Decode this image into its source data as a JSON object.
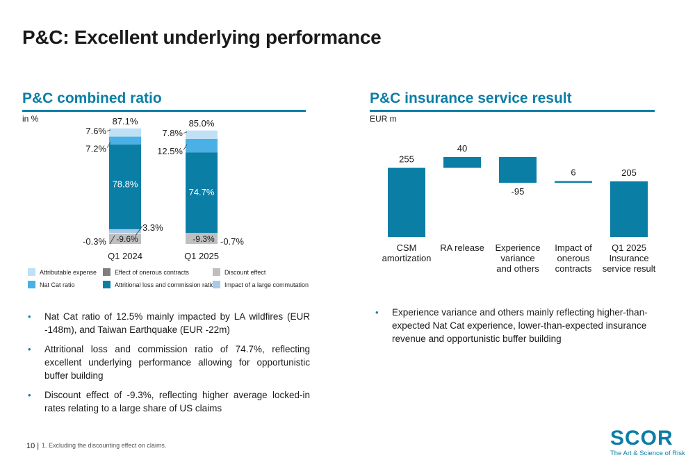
{
  "page": {
    "title": "P&C: Excellent underlying performance",
    "page_number": "10 |",
    "footnote": "1. Excluding the discounting effect on claims."
  },
  "left": {
    "section_title": "P&C combined ratio",
    "unit": "in %",
    "legend": [
      {
        "label": "Attributable expense",
        "color": "#bfe0f5"
      },
      {
        "label": "Effect of onerous contracts",
        "color": "#7f7f7f"
      },
      {
        "label": "Discount effect",
        "color": "#bfbfbf"
      },
      {
        "label": "Nat Cat ratio",
        "color": "#4ab0e6"
      },
      {
        "label": "Attritional loss and commission ratio",
        "sup": "1",
        "color": "#0b7ea6"
      },
      {
        "label": "Impact of a large commutation",
        "color": "#a9c9e9"
      }
    ],
    "bullets": [
      "Nat Cat ratio of 12.5% mainly impacted by LA wildfires (EUR -148m), and Taiwan Earthquake (EUR -22m)",
      "Attritional loss and commission ratio of 74.7%, reflecting excellent underlying performance allowing for opportunistic buffer building",
      "Discount effect of -9.3%, reflecting higher average locked-in rates relating to a large share of US claims"
    ]
  },
  "right": {
    "section_title": "P&C insurance service result",
    "unit": "EUR m",
    "bullets": [
      "Experience variance and others mainly reflecting higher-than-expected Nat Cat experience, lower-than-expected insurance revenue and opportunistic buffer building"
    ]
  },
  "chart_data": [
    {
      "type": "bar",
      "stacked": true,
      "title": "P&C combined ratio",
      "ylabel": "in %",
      "categories": [
        "Q1 2024",
        "Q1 2025"
      ],
      "totals": [
        "87.1%",
        "85.0%"
      ],
      "series": [
        {
          "name": "Attritional loss and commission ratio",
          "values": [
            78.8,
            74.7
          ],
          "labels": [
            "78.8%",
            "74.7%"
          ],
          "color": "#0b7ea6"
        },
        {
          "name": "Nat Cat ratio",
          "values": [
            7.2,
            12.5
          ],
          "labels": [
            "7.2%",
            "12.5%"
          ],
          "color": "#4ab0e6"
        },
        {
          "name": "Attributable expense",
          "values": [
            7.6,
            7.8
          ],
          "labels": [
            "7.6%",
            "7.8%"
          ],
          "color": "#bfe0f5"
        },
        {
          "name": "Impact of a large commutation",
          "values": [
            3.3,
            null
          ],
          "labels": [
            "3.3%",
            ""
          ],
          "color": "#a9c9e9"
        },
        {
          "name": "Effect of onerous contracts",
          "values": [
            -0.3,
            -0.7
          ],
          "labels": [
            "-0.3%",
            "-0.7%"
          ],
          "color": "#7f7f7f"
        },
        {
          "name": "Discount effect",
          "values": [
            -9.6,
            -9.3
          ],
          "labels": [
            "-9.6%",
            "-9.3%"
          ],
          "color": "#bfbfbf"
        }
      ],
      "legend_position": "bottom"
    },
    {
      "type": "bar",
      "subtype": "waterfall",
      "title": "P&C insurance service result",
      "ylabel": "EUR m",
      "categories": [
        "CSM amortization",
        "RA release",
        "Experience variance and others",
        "Impact of onerous contracts",
        "Q1 2025 Insurance service result"
      ],
      "category_lines": [
        [
          "CSM",
          "amortization"
        ],
        [
          "RA release"
        ],
        [
          "Experience",
          "variance",
          "and others"
        ],
        [
          "Impact of",
          "onerous",
          "contracts"
        ],
        [
          "Q1 2025",
          "Insurance",
          "service result"
        ]
      ],
      "values": [
        255,
        40,
        -95,
        6,
        205
      ],
      "labels": [
        "255",
        "40",
        "-95",
        "6",
        "205"
      ],
      "kinds": [
        "start",
        "delta",
        "delta",
        "delta",
        "total"
      ],
      "color": "#0b7ea6"
    }
  ]
}
